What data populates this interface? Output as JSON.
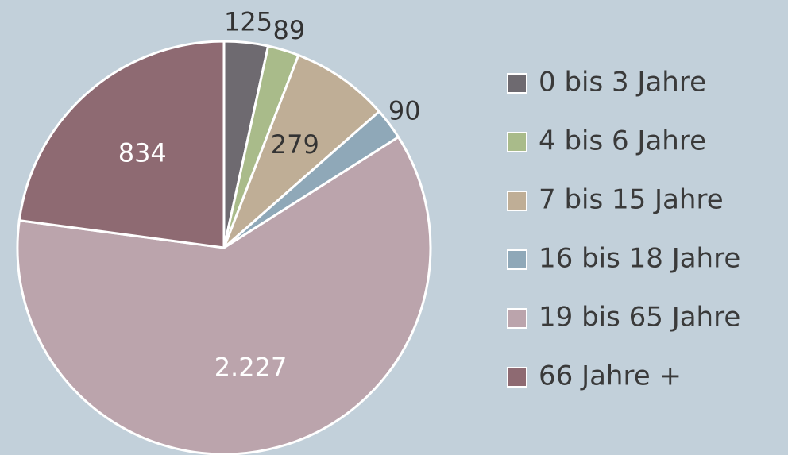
{
  "chart_data": {
    "type": "pie",
    "categories": [
      "0 bis 3 Jahre",
      "4 bis 6 Jahre",
      "7 bis 15 Jahre",
      "16 bis 18 Jahre",
      "19 bis 65 Jahre",
      "66 Jahre +"
    ],
    "values": [
      125,
      89,
      279,
      90,
      2227,
      834
    ],
    "value_labels": [
      "125",
      "89",
      "279",
      "90",
      "2.227",
      "834"
    ],
    "colors": [
      "#6e6a70",
      "#a9bb8a",
      "#bfae96",
      "#8fa8b8",
      "#bba4ac",
      "#8e6a72"
    ],
    "legend": "right"
  }
}
